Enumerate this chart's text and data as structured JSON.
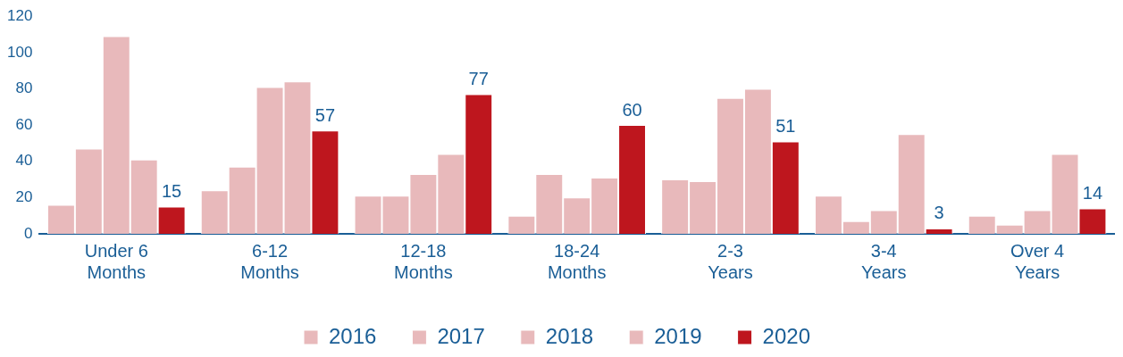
{
  "chart_data": {
    "type": "bar",
    "categories": [
      "Under 6 Months",
      "6-12 Months",
      "12-18 Months",
      "18-24 Months",
      "2-3 Years",
      "3-4 Years",
      "Over 4 Years"
    ],
    "series": [
      {
        "name": "2016",
        "color": "#e8b9bb",
        "values": [
          16,
          24,
          21,
          10,
          30,
          21,
          10
        ]
      },
      {
        "name": "2017",
        "color": "#e8b9bb",
        "values": [
          47,
          37,
          21,
          33,
          29,
          7,
          5
        ]
      },
      {
        "name": "2018",
        "color": "#e8b9bb",
        "values": [
          109,
          81,
          33,
          20,
          75,
          13,
          13
        ]
      },
      {
        "name": "2019",
        "color": "#e8b9bb",
        "values": [
          41,
          84,
          44,
          31,
          80,
          55,
          44
        ]
      },
      {
        "name": "2020",
        "color": "#be161e",
        "values": [
          15,
          57,
          77,
          60,
          51,
          3,
          14
        ],
        "value_labels": [
          "15",
          "57",
          "77",
          "60",
          "51",
          "3",
          "14"
        ]
      }
    ],
    "ylim": [
      0,
      120
    ],
    "yticks": [
      0,
      20,
      40,
      60,
      80,
      100,
      120
    ],
    "grid": false,
    "legend": "bottom"
  }
}
